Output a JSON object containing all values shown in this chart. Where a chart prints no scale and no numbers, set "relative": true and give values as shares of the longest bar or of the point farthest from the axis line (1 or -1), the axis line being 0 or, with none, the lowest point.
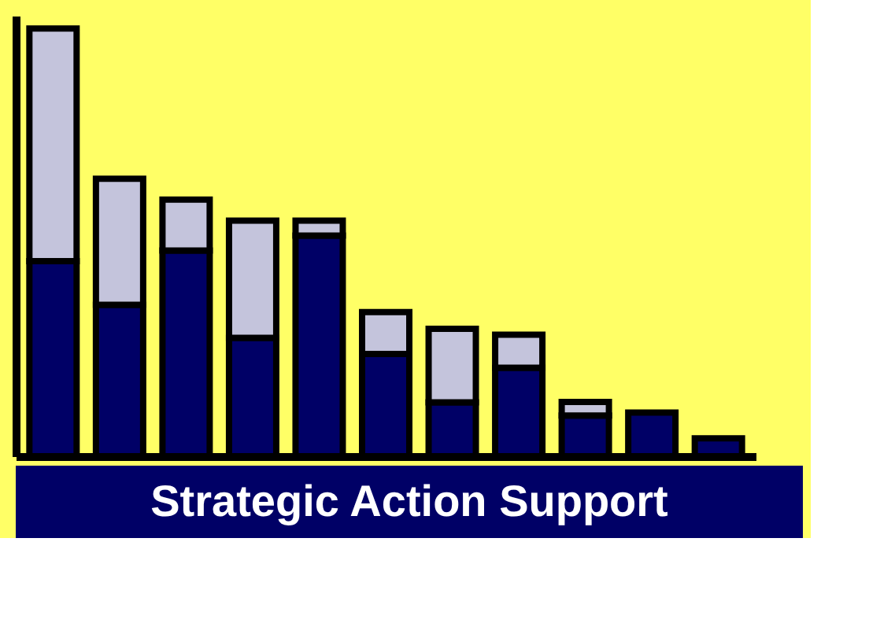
{
  "chart_data": {
    "type": "bar",
    "title": "Strategic Action Support",
    "relative": true,
    "stacked": true,
    "categories": [
      null,
      null,
      null,
      null,
      null,
      null,
      null,
      null,
      null,
      null,
      null
    ],
    "series": [
      {
        "color": "#000066",
        "values": [
          0.456,
          0.354,
          0.481,
          0.277,
          0.516,
          0.239,
          0.126,
          0.207,
          0.095,
          0.102,
          0.042
        ]
      },
      {
        "color": "#c4c4dc",
        "values": [
          0.544,
          0.295,
          0.119,
          0.274,
          0.035,
          0.098,
          0.172,
          0.077,
          0.032,
          null,
          null
        ]
      }
    ],
    "grid": false,
    "legend": false
  }
}
